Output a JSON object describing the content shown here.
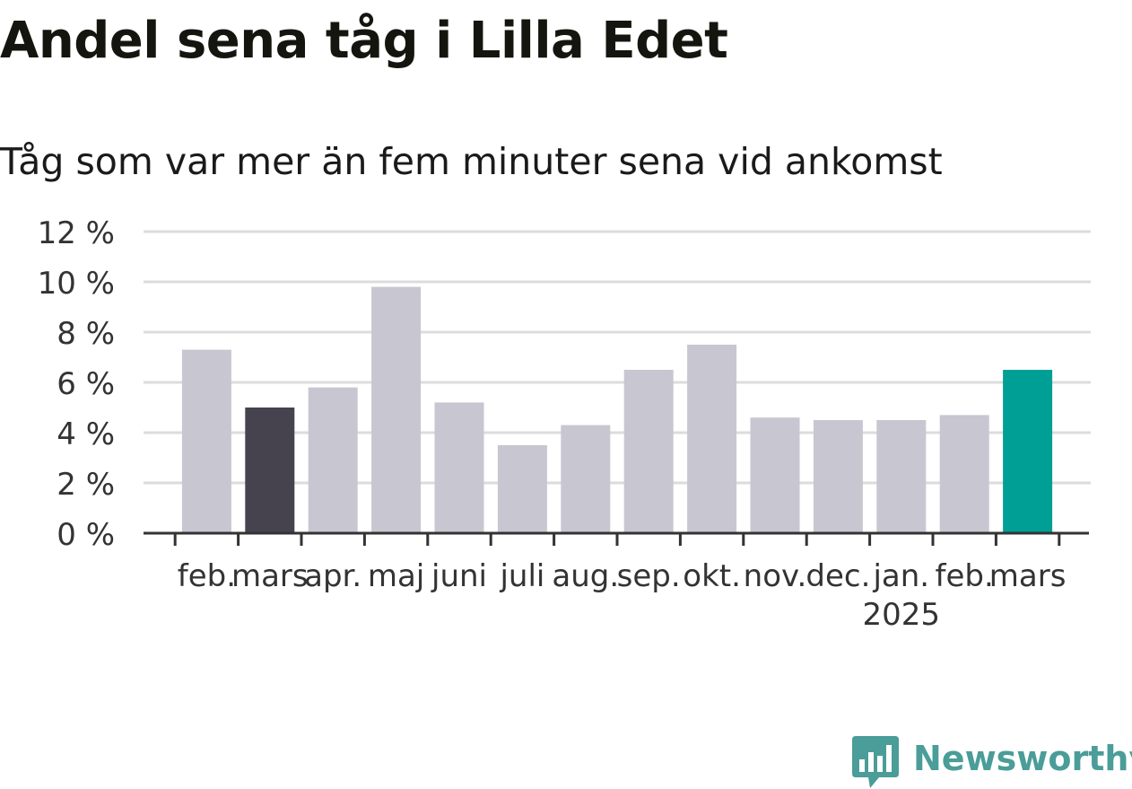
{
  "header": {
    "title": "Andel sena tåg i Lilla Edet",
    "subtitle": "Tåg som var mer än fem minuter sena vid ankomst"
  },
  "brand": {
    "name": "Newsworthy",
    "logo_icon": "bar-chart-bubble-icon",
    "color": "#4a9d98"
  },
  "colors": {
    "default_bar": "#c8c6d1",
    "last_year_bar": "#46434f",
    "current_bar": "#009f96",
    "grid": "#dcdcdc",
    "axis": "#333333",
    "tick_text": "#333333"
  },
  "chart_data": {
    "type": "bar",
    "title": "Andel sena tåg i Lilla Edet",
    "subtitle": "Tåg som var mer än fem minuter sena vid ankomst",
    "xlabel": "",
    "ylabel": "",
    "y_unit_suffix": " %",
    "ylim": [
      0,
      12
    ],
    "yticks": [
      0,
      2,
      4,
      6,
      8,
      10,
      12
    ],
    "ytick_labels": [
      "0 %",
      "2 %",
      "4 %",
      "6 %",
      "8 %",
      "10 %",
      "12 %"
    ],
    "grid": true,
    "legend": "none",
    "categories": [
      "feb.",
      "mars",
      "apr.",
      "maj",
      "juni",
      "juli",
      "aug.",
      "sep.",
      "okt.",
      "nov.",
      "dec.",
      "jan.",
      "feb.",
      "mars"
    ],
    "year_labels": [
      "",
      "",
      "",
      "",
      "",
      "",
      "",
      "",
      "",
      "",
      "",
      "2025",
      "",
      ""
    ],
    "values": [
      7.3,
      5.0,
      5.8,
      9.8,
      5.2,
      3.5,
      4.3,
      6.5,
      7.5,
      4.6,
      4.5,
      4.5,
      4.7,
      6.5
    ],
    "highlight": [
      "default",
      "last_year",
      "default",
      "default",
      "default",
      "default",
      "default",
      "default",
      "default",
      "default",
      "default",
      "default",
      "default",
      "current"
    ]
  }
}
